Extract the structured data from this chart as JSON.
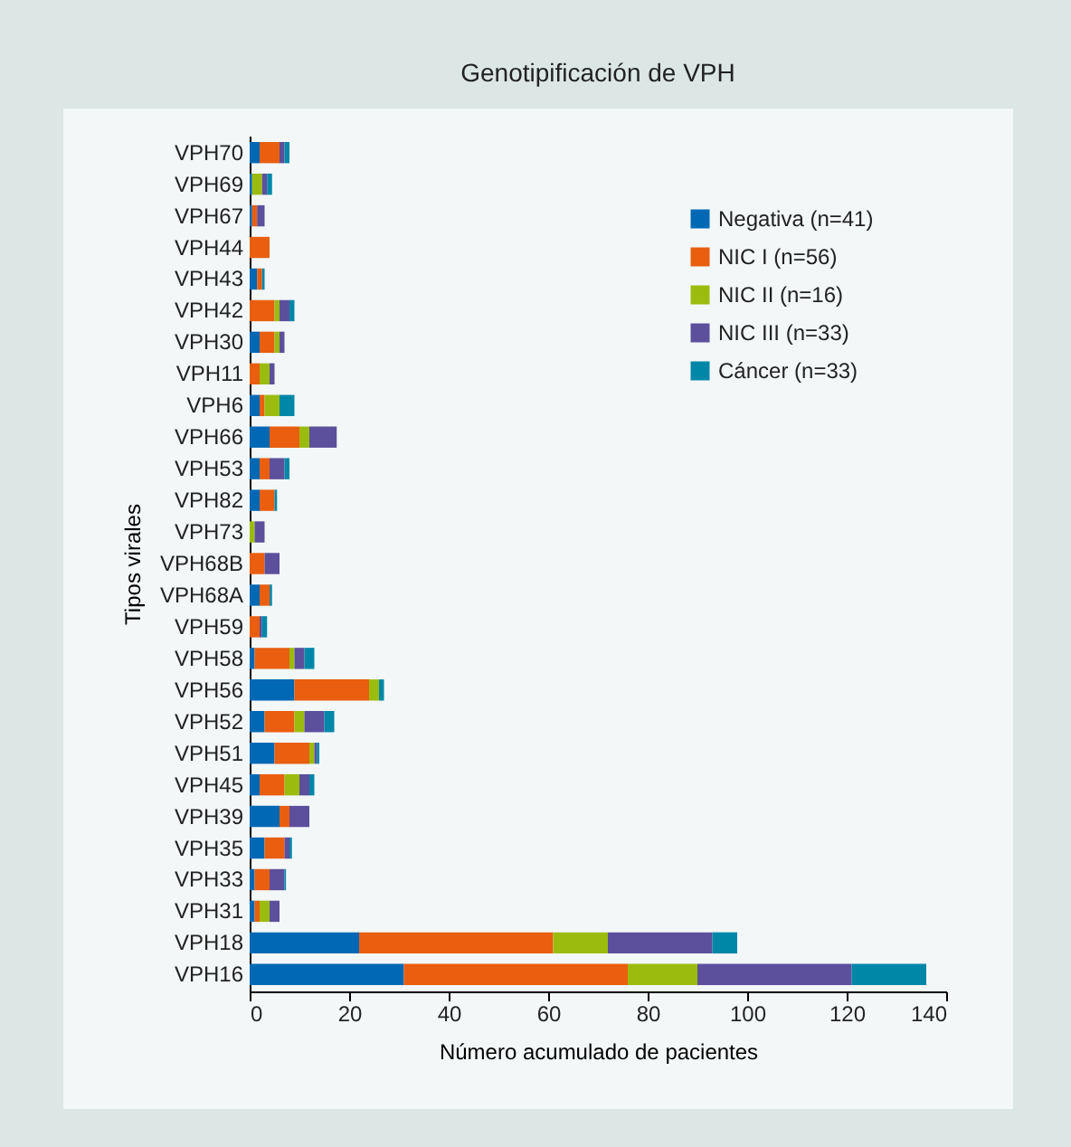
{
  "chart_data": {
    "type": "bar",
    "orientation": "horizontal",
    "stacked": true,
    "title": "Genotipificación de VPH",
    "xlabel": "Número acumulado de pacientes",
    "ylabel": "Tipos virales",
    "categories": [
      "VPH70",
      "VPH69",
      "VPH67",
      "VPH44",
      "VPH43",
      "VPH42",
      "VPH30",
      "VPH11",
      "VPH6",
      "VPH66",
      "VPH53",
      "VPH82",
      "VPH73",
      "VPH68B",
      "VPH68A",
      "VPH59",
      "VPH58",
      "VPH56",
      "VPH52",
      "VPH51",
      "VPH45",
      "VPH39",
      "VPH35",
      "VPH33",
      "VPH31",
      "VPH18",
      "VPH16"
    ],
    "series": [
      {
        "name": "Negativa (n=41)",
        "color": "#0068b4",
        "values": [
          2,
          0.5,
          0.5,
          null,
          1.5,
          null,
          2,
          null,
          2,
          4,
          2,
          2,
          null,
          null,
          2,
          null,
          1,
          9,
          3,
          5,
          2,
          6,
          3,
          1,
          1,
          22,
          31
        ]
      },
      {
        "name": "NIC I (n=56)",
        "color": "#e95e0f",
        "values": [
          4,
          null,
          1,
          4,
          1,
          5,
          3,
          2,
          1,
          6,
          2,
          3,
          null,
          3,
          2,
          2,
          7,
          15,
          6,
          7,
          5,
          2,
          4,
          3,
          1,
          39,
          45
        ]
      },
      {
        "name": "NIC II (n=16)",
        "color": "#9bbc0f",
        "values": [
          null,
          2,
          null,
          null,
          null,
          1,
          1,
          2,
          3,
          2,
          null,
          null,
          1,
          null,
          null,
          null,
          1,
          2,
          2,
          1,
          3,
          null,
          null,
          null,
          2,
          11,
          14
        ]
      },
      {
        "name": "NIC III (n=33)",
        "color": "#5c4f9c",
        "values": [
          1,
          1,
          1.5,
          null,
          null,
          2,
          1,
          1,
          null,
          5.5,
          3,
          null,
          2,
          3,
          null,
          0.5,
          2,
          null,
          4,
          0.5,
          2,
          4,
          1,
          3,
          2,
          21,
          31
        ]
      },
      {
        "name": "Cáncer (n=33)",
        "color": "#0087a8",
        "values": [
          1,
          1,
          null,
          null,
          0.5,
          1,
          null,
          null,
          3,
          null,
          1,
          0.5,
          null,
          null,
          0.5,
          1,
          2,
          1,
          2,
          0.5,
          1,
          null,
          0.5,
          0.3,
          null,
          5,
          15
        ]
      }
    ],
    "xlim": [
      0,
      140
    ],
    "xticks": [
      0,
      20,
      40,
      60,
      80,
      100,
      120,
      140
    ],
    "legend": "top right",
    "grid": false
  }
}
